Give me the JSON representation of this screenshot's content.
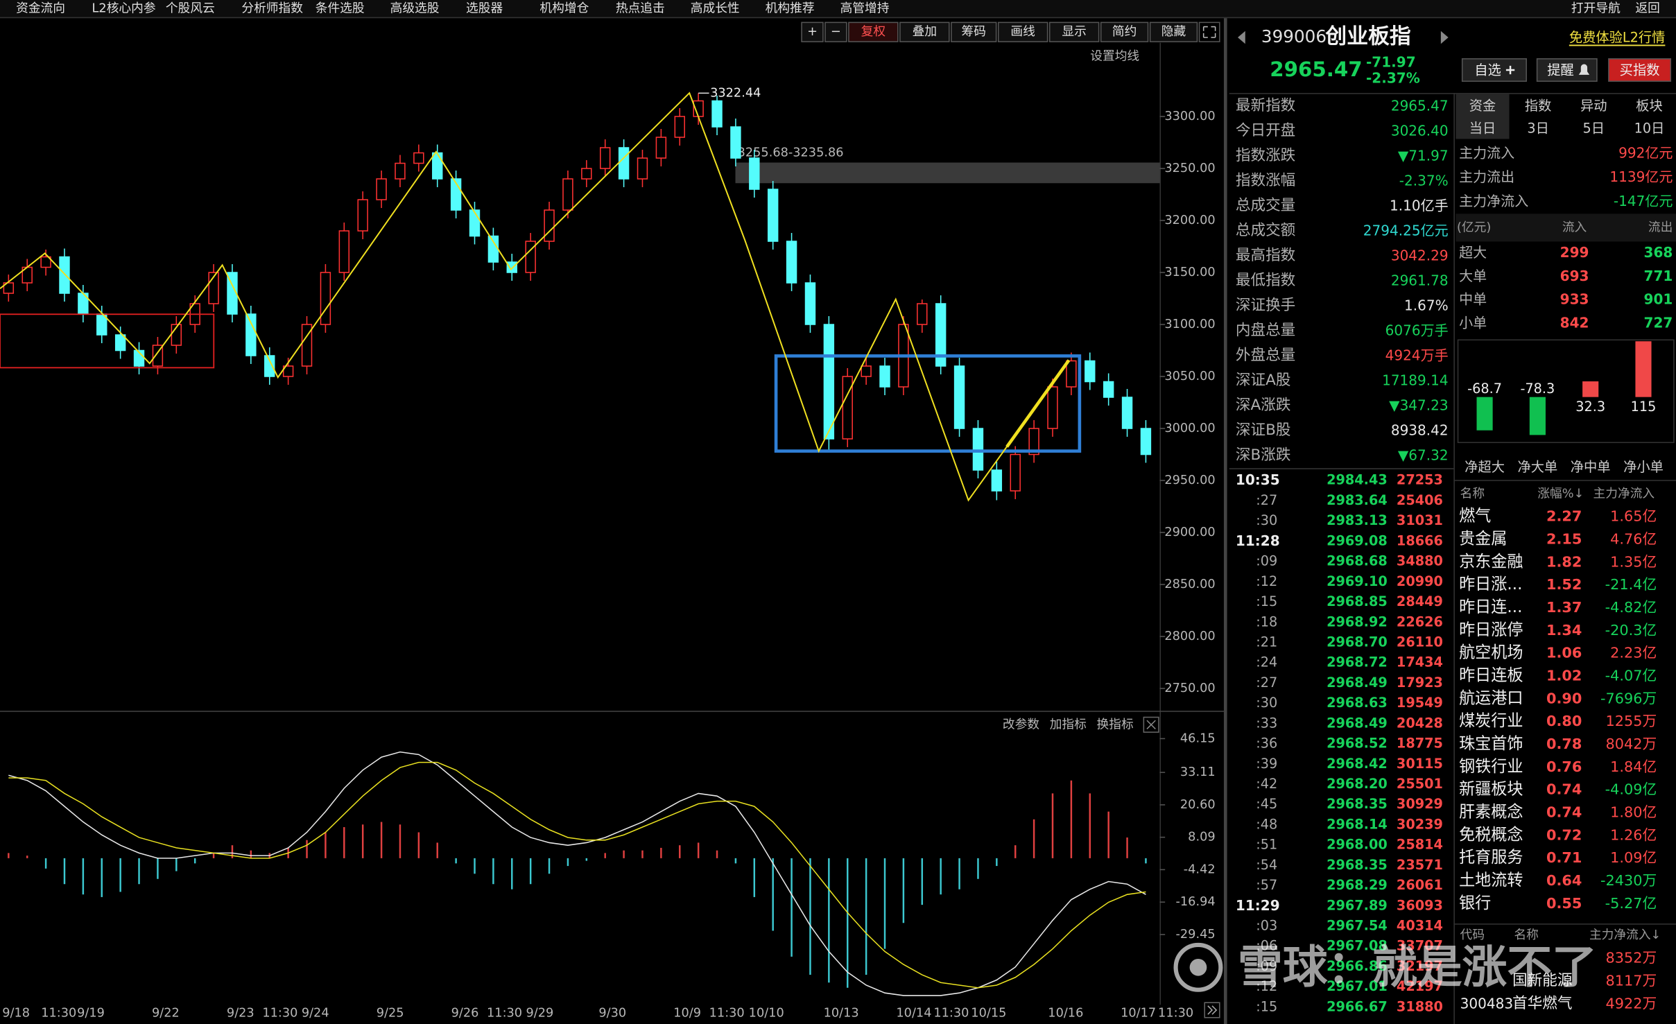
{
  "menu": {
    "items": [
      "资金流向",
      "L2核心内参",
      "个股风云",
      "分析师指数",
      "条件选股",
      "高级选股",
      "选股器",
      "机构增仓",
      "热点追击",
      "高成长性",
      "机构推荐",
      "高管增持"
    ],
    "right": [
      "打开导航",
      "返回"
    ]
  },
  "toolbar": [
    "+",
    "−",
    "复权",
    "叠加",
    "筹码",
    "画线",
    "显示",
    "简约",
    "隐藏"
  ],
  "chart_data": [
    {
      "type": "candlestick",
      "ma_setting": "设置均线",
      "up_color": "#ff3232",
      "down_color": "#54fcfc",
      "ylim": [
        2728.5,
        3393.5
      ],
      "yticks": [
        {
          "value": 3300,
          "label": "3300.00"
        },
        {
          "value": 3250,
          "label": "3250.00"
        },
        {
          "value": 3200,
          "label": "3200.00"
        },
        {
          "value": 3150,
          "label": "3150.00"
        },
        {
          "value": 3100,
          "label": "3100.00"
        },
        {
          "value": 3050,
          "label": "3050.00"
        },
        {
          "value": 3000,
          "label": "3000.00"
        },
        {
          "value": 2950,
          "label": "2950.00"
        },
        {
          "value": 2900,
          "label": "2900.00"
        },
        {
          "value": 2850,
          "label": "2850.00"
        },
        {
          "value": 2800,
          "label": "2800.00"
        },
        {
          "value": 2750,
          "label": "2750.00"
        }
      ],
      "x_labels": [
        "9/18",
        "11:30",
        "9/19",
        "9/22",
        "9/23",
        "11:30",
        "9/24",
        "9/25",
        "9/26",
        "11:30",
        "9/29",
        "9/30",
        "10/9",
        "11:30",
        "10/10",
        "10/13",
        "10/14",
        "11:30",
        "10/15",
        "10/16",
        "10/17",
        "11:30"
      ],
      "peak": 3322.44,
      "band": {
        "label": "3255.68-3235.86",
        "high": 3255.68,
        "low": 3235.86
      },
      "ohlc": [
        [
          3130,
          3148,
          3122,
          3140
        ],
        [
          3140,
          3163,
          3132,
          3155
        ],
        [
          3155,
          3172,
          3147,
          3165
        ],
        [
          3165,
          3173,
          3122,
          3130
        ],
        [
          3130,
          3138,
          3102,
          3110
        ],
        [
          3110,
          3118,
          3082,
          3090
        ],
        [
          3090,
          3098,
          3067,
          3075
        ],
        [
          3075,
          3083,
          3052,
          3060
        ],
        [
          3060,
          3088,
          3052,
          3080
        ],
        [
          3080,
          3108,
          3072,
          3100
        ],
        [
          3100,
          3128,
          3092,
          3120
        ],
        [
          3120,
          3158,
          3112,
          3150
        ],
        [
          3150,
          3158,
          3102,
          3110
        ],
        [
          3110,
          3118,
          3062,
          3070
        ],
        [
          3070,
          3078,
          3042,
          3050
        ],
        [
          3050,
          3068,
          3042,
          3060
        ],
        [
          3060,
          3108,
          3052,
          3100
        ],
        [
          3100,
          3158,
          3092,
          3150
        ],
        [
          3150,
          3198,
          3142,
          3190
        ],
        [
          3190,
          3228,
          3182,
          3220
        ],
        [
          3220,
          3248,
          3212,
          3240
        ],
        [
          3240,
          3263,
          3232,
          3255
        ],
        [
          3255,
          3273,
          3247,
          3265
        ],
        [
          3265,
          3273,
          3232,
          3240
        ],
        [
          3240,
          3248,
          3202,
          3210
        ],
        [
          3210,
          3218,
          3177,
          3185
        ],
        [
          3185,
          3193,
          3152,
          3160
        ],
        [
          3160,
          3168,
          3142,
          3150
        ],
        [
          3150,
          3188,
          3142,
          3180
        ],
        [
          3180,
          3218,
          3172,
          3210
        ],
        [
          3210,
          3248,
          3202,
          3240
        ],
        [
          3240,
          3258,
          3232,
          3250
        ],
        [
          3250,
          3278,
          3242,
          3270
        ],
        [
          3270,
          3278,
          3232,
          3240
        ],
        [
          3240,
          3268,
          3232,
          3260
        ],
        [
          3260,
          3288,
          3252,
          3280
        ],
        [
          3280,
          3308,
          3272,
          3300
        ],
        [
          3300,
          3322.44,
          3292,
          3315
        ],
        [
          3315,
          3320,
          3282,
          3290
        ],
        [
          3290,
          3298,
          3252,
          3260
        ],
        [
          3260,
          3268,
          3222,
          3230
        ],
        [
          3230,
          3238,
          3172,
          3180
        ],
        [
          3180,
          3188,
          3132,
          3140
        ],
        [
          3140,
          3148,
          3092,
          3100
        ],
        [
          3100,
          3108,
          2978,
          2990
        ],
        [
          2990,
          3058,
          2982,
          3050
        ],
        [
          3050,
          3068,
          3042,
          3060
        ],
        [
          3060,
          3068,
          3032,
          3040
        ],
        [
          3040,
          3108,
          3032,
          3100
        ],
        [
          3100,
          3124,
          3092,
          3120
        ],
        [
          3120,
          3128,
          3052,
          3060
        ],
        [
          3060,
          3068,
          2992,
          3000
        ],
        [
          3000,
          3008,
          2952,
          2960
        ],
        [
          2960,
          2968,
          2931,
          2940
        ],
        [
          2940,
          2983,
          2932,
          2975
        ],
        [
          2975,
          3008,
          2967,
          3000
        ],
        [
          3000,
          3048,
          2992,
          3040
        ],
        [
          3040,
          3073,
          3032,
          3065
        ],
        [
          3065,
          3073,
          3037,
          3045
        ],
        [
          3045,
          3053,
          3022,
          3030
        ],
        [
          3030,
          3038,
          2992,
          3000
        ],
        [
          3000,
          3008,
          2967,
          2975
        ]
      ]
    },
    {
      "type": "macd",
      "header": [
        "改参数",
        "加指标",
        "换指标"
      ],
      "dif_color": "#e8e8e8",
      "dea_color": "#e8e020",
      "up_color": "#e04040",
      "down_color": "#3cc8d0",
      "ylim": [
        -54.5,
        50.7
      ],
      "yticks": [
        46.15,
        33.11,
        {
          "value": 20.6,
          "label": "20.60"
        },
        8.09,
        -4.42,
        -16.94,
        -29.45
      ],
      "hist": [
        2,
        1,
        -4,
        -10,
        -14,
        -15,
        -13,
        -10,
        -8,
        -5,
        -2,
        2,
        5,
        3,
        2,
        4,
        7,
        10,
        12,
        13,
        14,
        13,
        10,
        6,
        -2,
        -6,
        -10,
        -12,
        -10,
        -6,
        -3,
        -1,
        2,
        3,
        3,
        4,
        5,
        6,
        3,
        -2,
        -15,
        -28,
        -38,
        -45,
        -48,
        -50,
        -45,
        -35,
        -25,
        -18,
        -14,
        -12,
        -8,
        -3,
        5,
        15,
        25,
        30,
        25,
        18,
        8,
        -2
      ],
      "dif": [
        32,
        30,
        26,
        20,
        14,
        9,
        5,
        2,
        0,
        0,
        1,
        2,
        2,
        1,
        1,
        4,
        10,
        18,
        27,
        34,
        39,
        41,
        40,
        36,
        30,
        24,
        18,
        12,
        8,
        6,
        5,
        6,
        8,
        11,
        14,
        18,
        22,
        25,
        24,
        20,
        10,
        -2,
        -14,
        -26,
        -36,
        -44,
        -49,
        -52,
        -53,
        -53,
        -53,
        -52,
        -50,
        -47,
        -42,
        -33,
        -24,
        -16,
        -12,
        -9,
        -10,
        -14
      ],
      "dea": [
        31,
        31,
        30,
        25,
        21,
        16,
        12,
        8,
        6,
        4,
        3,
        2,
        1,
        0,
        0,
        2,
        5,
        10,
        17,
        24,
        30,
        35,
        37,
        37,
        34,
        29,
        25,
        20,
        15,
        11,
        8,
        7,
        7,
        9,
        12,
        15,
        18,
        21,
        22,
        22,
        20,
        14,
        6,
        -3,
        -12,
        -21,
        -29,
        -36,
        -41,
        -45,
        -48,
        -49,
        -50,
        -49,
        -46,
        -41,
        -35,
        -28,
        -22,
        -17,
        -14,
        -13
      ]
    },
    {
      "type": "bar",
      "categories": [
        "净超大",
        "净大单",
        "净中单",
        "净小单"
      ],
      "values": [
        -68.7,
        -78.3,
        32.3,
        115
      ],
      "colors": [
        "#10c050",
        "#10c050",
        "#f04848",
        "#f04848"
      ],
      "ylim": [
        -85,
        120
      ]
    }
  ],
  "header": {
    "code": "399006",
    "name": "创业板指",
    "price": "2965.47",
    "change": "-71.97",
    "pct": "-2.37%",
    "promo": "免费体验L2行情",
    "buttons": [
      "自选",
      "提醒",
      "买指数"
    ]
  },
  "quote": [
    [
      "最新指数",
      "2965.47",
      "green"
    ],
    [
      "今日开盘",
      "3026.40",
      "green"
    ],
    [
      "指数涨跌",
      "▼71.97",
      "green"
    ],
    [
      "指数涨幅",
      "-2.37%",
      "green"
    ],
    [
      "总成交量",
      "1.10亿手",
      "white"
    ],
    [
      "总成交额",
      "2794.25亿元",
      "cyan"
    ],
    [
      "最高指数",
      "3042.29",
      "red"
    ],
    [
      "最低指数",
      "2961.78",
      "green"
    ],
    [
      "深证换手",
      "1.67%",
      "white"
    ],
    [
      "内盘总量",
      "6076万手",
      "green"
    ],
    [
      "外盘总量",
      "4924万手",
      "red"
    ],
    [
      "深证A股",
      "17189.14",
      "green"
    ],
    [
      "深A涨跌",
      "▼347.23",
      "green"
    ],
    [
      "深证B股",
      "8938.42",
      "white"
    ],
    [
      "深B涨跌",
      "▼67.32",
      "green"
    ]
  ],
  "ticks": [
    [
      "10:35",
      "2984.43",
      "27253"
    ],
    [
      ":27",
      "2983.64",
      "25406"
    ],
    [
      ":30",
      "2983.13",
      "31031"
    ],
    [
      "11:28",
      "2969.08",
      "18666"
    ],
    [
      ":09",
      "2968.68",
      "34880"
    ],
    [
      ":12",
      "2969.10",
      "20990"
    ],
    [
      ":15",
      "2968.85",
      "28449"
    ],
    [
      ":18",
      "2968.92",
      "22626"
    ],
    [
      ":21",
      "2968.70",
      "26110"
    ],
    [
      ":24",
      "2968.72",
      "17434"
    ],
    [
      ":27",
      "2968.49",
      "17923"
    ],
    [
      ":30",
      "2968.63",
      "19549"
    ],
    [
      ":33",
      "2968.49",
      "20428"
    ],
    [
      ":36",
      "2968.52",
      "18775"
    ],
    [
      ":39",
      "2968.42",
      "30115"
    ],
    [
      ":42",
      "2968.20",
      "25501"
    ],
    [
      ":45",
      "2968.35",
      "30929"
    ],
    [
      ":48",
      "2968.14",
      "30239"
    ],
    [
      ":51",
      "2968.00",
      "25814"
    ],
    [
      ":54",
      "2968.35",
      "23571"
    ],
    [
      ":57",
      "2968.29",
      "26061"
    ],
    [
      "11:29",
      "2967.89",
      "36093"
    ],
    [
      ":03",
      "2967.54",
      "40314"
    ],
    [
      ":06",
      "2967.08",
      "33707"
    ],
    [
      ":09",
      "2966.86",
      "32197"
    ],
    [
      ":12",
      "2967.01",
      "42197"
    ],
    [
      ":15",
      "2966.67",
      "31880"
    ]
  ],
  "flow": {
    "tabs": [
      "资金",
      "指数",
      "异动",
      "板块"
    ],
    "periods": [
      "当日",
      "3日",
      "5日",
      "10日"
    ],
    "summary": [
      [
        "主力流入",
        "992亿元",
        "red"
      ],
      [
        "主力流出",
        "1139亿元",
        "red"
      ],
      [
        "主力净流入",
        "-147亿元",
        "red"
      ]
    ],
    "table_header": [
      "(亿元)",
      "流入",
      "流出"
    ],
    "table": [
      [
        "超大",
        "299",
        "368"
      ],
      [
        "大单",
        "693",
        "771"
      ],
      [
        "中单",
        "933",
        "901"
      ],
      [
        "小单",
        "842",
        "727"
      ]
    ]
  },
  "sectors": {
    "header": [
      "名称",
      "涨幅%↓",
      "主力净流入"
    ],
    "rows": [
      [
        "燃气",
        "2.27",
        "1.65亿"
      ],
      [
        "贵金属",
        "2.15",
        "4.76亿"
      ],
      [
        "京东金融",
        "1.82",
        "1.35亿"
      ],
      [
        "昨日涨...",
        "1.52",
        "-21.4亿"
      ],
      [
        "昨日连...",
        "1.37",
        "-4.82亿"
      ],
      [
        "昨日涨停",
        "1.34",
        "-20.3亿"
      ],
      [
        "航空机场",
        "1.06",
        "2.23亿"
      ],
      [
        "昨日连板",
        "1.02",
        "-4.07亿"
      ],
      [
        "航运港口",
        "0.90",
        "-7696万"
      ],
      [
        "煤炭行业",
        "0.80",
        "1255万"
      ],
      [
        "珠宝首饰",
        "0.78",
        "8042万"
      ],
      [
        "钢铁行业",
        "0.76",
        "1.84亿"
      ],
      [
        "新疆板块",
        "0.74",
        "-4.09亿"
      ],
      [
        "肝素概念",
        "0.74",
        "1.80亿"
      ],
      [
        "免税概念",
        "0.72",
        "1.26亿"
      ],
      [
        "托育服务",
        "0.71",
        "1.09亿"
      ],
      [
        "土地流转",
        "0.64",
        "-2430万"
      ],
      [
        "银行",
        "0.55",
        "-5.27亿"
      ]
    ]
  },
  "stocks": {
    "header": [
      "代码",
      "名称",
      "主力净流入↓"
    ],
    "rows": [
      {
        "net": "8352万"
      },
      {
        "name": "国新能源",
        "net": "8117万"
      },
      {
        "code": "300483",
        "name": "首华燃气",
        "net": "4922万"
      }
    ]
  },
  "watermark": "雪球：就是涨不了"
}
